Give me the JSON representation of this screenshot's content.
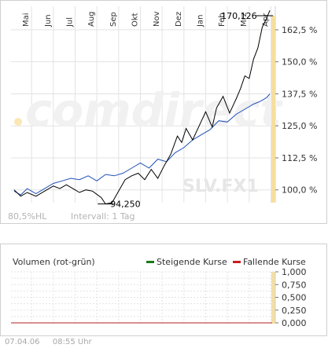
{
  "chart_data": [
    {
      "type": "line",
      "months": [
        "Mai",
        "Jun",
        "Jul",
        "Aug",
        "Sep",
        "Okt",
        "Nov",
        "Dez",
        "Jan",
        "Feb",
        "Mrz",
        "Apr"
      ],
      "y_ticks": [
        "162,5 %",
        "150,0 %",
        "137,5 %",
        "125,0 %",
        "112,5 %",
        "100,0 %"
      ],
      "y_tick_values": [
        162.5,
        150.0,
        137.5,
        125.0,
        112.5,
        100.0
      ],
      "ylim": [
        95,
        168
      ],
      "annotations": {
        "high": "170,126",
        "low": "94,250"
      },
      "series": [
        {
          "color": "#000000",
          "points": [
            [
              0,
              100.0
            ],
            [
              0.3,
              97.5
            ],
            [
              0.6,
              99.0
            ],
            [
              1.0,
              97.5
            ],
            [
              1.4,
              99.5
            ],
            [
              1.8,
              101.5
            ],
            [
              2.1,
              100.5
            ],
            [
              2.4,
              102.0
            ],
            [
              2.7,
              100.5
            ],
            [
              3.0,
              99.0
            ],
            [
              3.3,
              100.0
            ],
            [
              3.6,
              99.5
            ],
            [
              4.0,
              97.0
            ],
            [
              4.2,
              94.5
            ],
            [
              4.5,
              95.0
            ],
            [
              4.8,
              99.5
            ],
            [
              5.1,
              104.0
            ],
            [
              5.4,
              105.5
            ],
            [
              5.7,
              106.5
            ],
            [
              6.0,
              104.0
            ],
            [
              6.3,
              108.0
            ],
            [
              6.6,
              104.5
            ],
            [
              6.9,
              109.5
            ],
            [
              7.2,
              114.0
            ],
            [
              7.5,
              121.0
            ],
            [
              7.7,
              118.5
            ],
            [
              7.9,
              124.0
            ],
            [
              8.2,
              119.5
            ],
            [
              8.5,
              125.0
            ],
            [
              8.8,
              130.5
            ],
            [
              9.1,
              124.5
            ],
            [
              9.3,
              132.0
            ],
            [
              9.6,
              136.5
            ],
            [
              9.9,
              130.0
            ],
            [
              10.2,
              135.5
            ],
            [
              10.4,
              139.5
            ],
            [
              10.6,
              144.5
            ],
            [
              10.8,
              143.5
            ],
            [
              11.0,
              151.0
            ],
            [
              11.2,
              155.5
            ],
            [
              11.4,
              163.5
            ],
            [
              11.6,
              167.0
            ],
            [
              11.75,
              170.1
            ]
          ]
        },
        {
          "color": "#1f4fb8",
          "points": [
            [
              0,
              99.5
            ],
            [
              0.3,
              98.0
            ],
            [
              0.6,
              100.5
            ],
            [
              1.0,
              98.5
            ],
            [
              1.4,
              100.5
            ],
            [
              1.8,
              102.5
            ],
            [
              2.2,
              103.5
            ],
            [
              2.6,
              104.5
            ],
            [
              3.0,
              104.0
            ],
            [
              3.4,
              105.5
            ],
            [
              3.8,
              103.5
            ],
            [
              4.2,
              106.0
            ],
            [
              4.6,
              105.5
            ],
            [
              5.0,
              106.5
            ],
            [
              5.4,
              108.5
            ],
            [
              5.8,
              110.5
            ],
            [
              6.2,
              108.5
            ],
            [
              6.6,
              112.0
            ],
            [
              7.0,
              111.0
            ],
            [
              7.4,
              114.5
            ],
            [
              7.8,
              116.5
            ],
            [
              8.2,
              119.5
            ],
            [
              8.6,
              121.5
            ],
            [
              9.0,
              123.5
            ],
            [
              9.4,
              127.0
            ],
            [
              9.8,
              126.5
            ],
            [
              10.2,
              129.5
            ],
            [
              10.6,
              131.5
            ],
            [
              11.0,
              133.5
            ],
            [
              11.3,
              134.5
            ],
            [
              11.6,
              136.0
            ],
            [
              11.75,
              137.5
            ]
          ]
        }
      ],
      "watermark": "comdirect",
      "symbol": "SLV.FX1",
      "footer_left": "80,5%HL",
      "footer_interval": "Intervall: 1 Tag"
    },
    {
      "type": "bar",
      "title": "Volumen (rot-grün)",
      "legend": [
        {
          "label": "Steigende Kurse",
          "color": "#1a7a1a"
        },
        {
          "label": "Fallende Kurse",
          "color": "#c81e1e"
        }
      ],
      "y_ticks": [
        "1,000",
        "0,750",
        "0,500",
        "0,250",
        "0,000"
      ],
      "y_tick_values": [
        1.0,
        0.75,
        0.5,
        0.25,
        0.0
      ],
      "ylim": [
        0,
        1.0
      ],
      "values": [
        0,
        0,
        0,
        0,
        0,
        0,
        0,
        0,
        0,
        0,
        0,
        0
      ]
    }
  ],
  "footer": {
    "date": "07.04.06",
    "time": "08:55 Uhr"
  },
  "colors": {
    "highlight": "#f5dfa0",
    "grid": "#e3e3e3",
    "axis_text": "#333333"
  }
}
